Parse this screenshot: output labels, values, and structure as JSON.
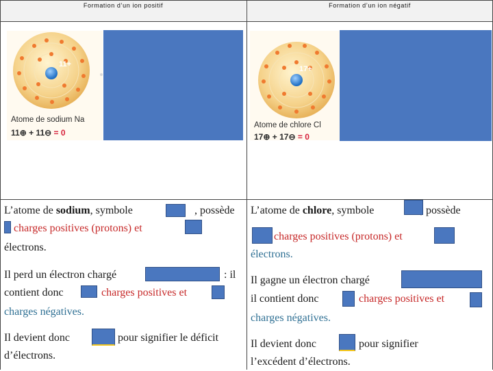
{
  "left": {
    "header": "Formation d’un ion positif",
    "atom_caption": "Atome de sodium Na",
    "nucleus_label": "11+",
    "equation": {
      "a": "11",
      "b": "+ 11",
      "c": "= 0"
    },
    "p1": {
      "t1": "L’atome de ",
      "b": "sodium",
      "t2": ", symbole",
      "t3": ", possède",
      "red": "charges positives (protons) et",
      "t4": "électrons."
    },
    "p2": {
      "t1": "Il perd un électron chargé",
      "t2": ": il",
      "t3": "contient donc",
      "red": "charges positives et",
      "teal": "charges négatives."
    },
    "p3": {
      "t1": "Il devient donc",
      "t2": "pour signifier le déficit",
      "t3": "d’électrons."
    }
  },
  "right": {
    "header": "Formation d’un ion négatif",
    "atom_caption": "Atome de chlore Cl",
    "nucleus_label": "17+",
    "equation": {
      "a": "17",
      "b": "+ 17",
      "c": "= 0"
    },
    "p1": {
      "t1": "L’atome de ",
      "b": "chlore",
      "t2": ", symbole",
      "t3": ", possède",
      "red": "charges positives (protons) et",
      "t4": "électrons."
    },
    "p2": {
      "t1": "Il gagne un électron chargé",
      "t2": "il contient donc",
      "red": "charges positives et",
      "teal": "charges négatives."
    },
    "p3": {
      "t1": "Il devient donc",
      "t2": "pour signifier",
      "t3": "l’excédent d’électrons."
    }
  }
}
